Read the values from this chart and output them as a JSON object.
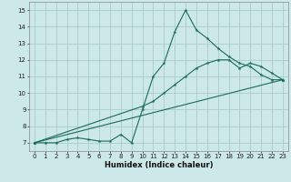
{
  "xlabel": "Humidex (Indice chaleur)",
  "bg_color": "#cce8e8",
  "grid_color": "#aacccc",
  "line_color": "#1a6b5a",
  "xlim": [
    -0.5,
    23.5
  ],
  "ylim": [
    6.5,
    15.5
  ],
  "xticks": [
    0,
    1,
    2,
    3,
    4,
    5,
    6,
    7,
    8,
    9,
    10,
    11,
    12,
    13,
    14,
    15,
    16,
    17,
    18,
    19,
    20,
    21,
    22,
    23
  ],
  "yticks": [
    7,
    8,
    9,
    10,
    11,
    12,
    13,
    14,
    15
  ],
  "line1_x": [
    0,
    1,
    2,
    3,
    4,
    5,
    6,
    7,
    8,
    9,
    10,
    11,
    12,
    13,
    14,
    15,
    16,
    17,
    18,
    19,
    20,
    21,
    22,
    23
  ],
  "line1_y": [
    7,
    7,
    7,
    7.2,
    7.3,
    7.2,
    7.1,
    7.1,
    7.5,
    7.0,
    9.0,
    11.0,
    11.8,
    13.7,
    15.0,
    13.8,
    13.3,
    12.7,
    12.2,
    11.8,
    11.6,
    11.1,
    10.8,
    10.8
  ],
  "line2_x": [
    0,
    10,
    11,
    12,
    13,
    14,
    15,
    16,
    17,
    18,
    19,
    20,
    21,
    22,
    23
  ],
  "line2_y": [
    7,
    9.2,
    9.5,
    10.0,
    10.5,
    11.0,
    11.5,
    11.8,
    12.0,
    12.0,
    11.5,
    11.8,
    11.6,
    11.2,
    10.8
  ],
  "line3_x": [
    0,
    23
  ],
  "line3_y": [
    7,
    10.8
  ],
  "xlabel_fontsize": 6,
  "tick_fontsize": 5
}
